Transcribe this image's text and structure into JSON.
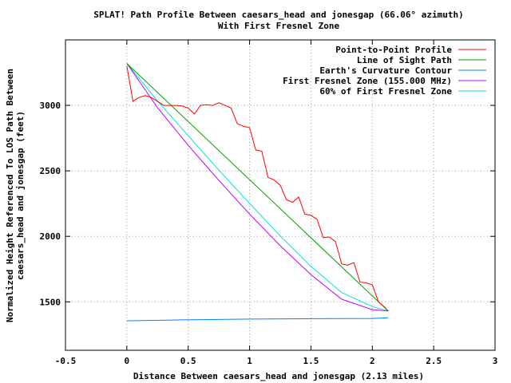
{
  "chart_data": {
    "type": "line",
    "title": "SPLAT! Path Profile Between caesars_head and jonesgap (66.06° azimuth)",
    "subtitle": "With First Fresnel Zone",
    "xlabel": "Distance Between caesars_head and jonesgap (2.13 miles)",
    "ylabel_line1": "Normalized Height Referenced To LOS Path Between",
    "ylabel_line2": "caesars_head and jonesgap (feet)",
    "xlim": [
      -0.5,
      3
    ],
    "ylim": [
      1130,
      3500
    ],
    "x_ticks": [
      -0.5,
      0,
      0.5,
      1,
      1.5,
      2,
      2.5,
      3
    ],
    "x_tick_labels": [
      "-0.5",
      "0",
      "0.5",
      "1",
      "1.5",
      "2",
      "2.5",
      "3"
    ],
    "y_ticks": [
      1500,
      2000,
      2500,
      3000
    ],
    "y_tick_labels": [
      "1500",
      "2000",
      "2500",
      "3000"
    ],
    "grid": true,
    "legend_position": "top-right",
    "series": [
      {
        "name": "Point-to-Point Profile",
        "color": "#ff0000",
        "x": [
          0,
          0.05,
          0.1,
          0.15,
          0.2,
          0.25,
          0.3,
          0.35,
          0.4,
          0.45,
          0.5,
          0.55,
          0.6,
          0.65,
          0.7,
          0.75,
          0.8,
          0.85,
          0.9,
          0.95,
          1.0,
          1.05,
          1.1,
          1.15,
          1.2,
          1.25,
          1.3,
          1.35,
          1.4,
          1.45,
          1.5,
          1.55,
          1.6,
          1.65,
          1.7,
          1.75,
          1.8,
          1.85,
          1.9,
          1.95,
          2.0,
          2.05,
          2.1,
          2.13
        ],
        "y": [
          3300,
          3030,
          3060,
          3075,
          3060,
          3030,
          3000,
          3000,
          3000,
          2995,
          2980,
          2935,
          3000,
          3005,
          3000,
          3020,
          3000,
          2980,
          2860,
          2840,
          2830,
          2660,
          2650,
          2450,
          2430,
          2390,
          2280,
          2260,
          2300,
          2170,
          2160,
          2130,
          1990,
          1995,
          1960,
          1790,
          1780,
          1800,
          1650,
          1645,
          1630,
          1500,
          1460,
          1430
        ]
      },
      {
        "name": "Line of Sight Path",
        "color": "#00a000",
        "x": [
          0,
          2.13
        ],
        "y": [
          3320,
          1430
        ]
      },
      {
        "name": "Earth's Curvature Contour",
        "color": "#0080ff",
        "x": [
          0,
          0.5,
          1.0,
          1.5,
          2.0,
          2.13
        ],
        "y": [
          1355,
          1363,
          1368,
          1371,
          1373,
          1378
        ]
      },
      {
        "name": "First Fresnel Zone (155.000 MHz)",
        "color": "#c000ff",
        "x": [
          0,
          0.25,
          0.5,
          0.75,
          1.0,
          1.25,
          1.5,
          1.75,
          2.0,
          2.13
        ],
        "y": [
          3320,
          2983,
          2695,
          2427,
          2170,
          1928,
          1708,
          1520,
          1440,
          1430
        ]
      },
      {
        "name": "60% of First Fresnel Zone",
        "color": "#00e0e0",
        "x": [
          0,
          0.25,
          0.5,
          0.75,
          1.0,
          1.25,
          1.5,
          1.75,
          2.0,
          2.13
        ],
        "y": [
          3320,
          3034,
          2768,
          2506,
          2251,
          2003,
          1771,
          1571,
          1464,
          1430
        ]
      }
    ]
  }
}
